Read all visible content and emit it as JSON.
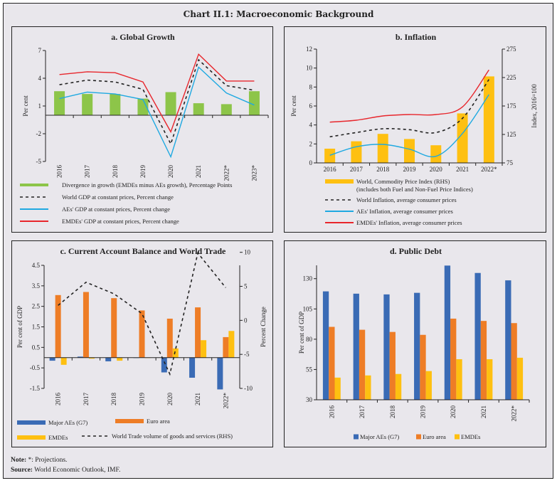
{
  "main_title": "Chart II.1: Macroeconomic Background",
  "notes": {
    "note_label": "Note:",
    "note_text": " *: Projections.",
    "source_label": "Source:",
    "source_text": " World Economic Outlook, IMF."
  },
  "colors": {
    "green": "#8dc549",
    "red": "#e8262c",
    "cyan": "#1fa9e1",
    "black": "#222222",
    "gold": "#fec011",
    "blue": "#3a6bb5",
    "orange": "#ee7d26",
    "background": "#e9e7ec"
  },
  "chart_data": [
    {
      "id": "a",
      "type": "bar+line",
      "title": "a. Global Growth",
      "ylabel": "Per cent",
      "ylim": [
        -5,
        7
      ],
      "yticks": [
        7,
        4,
        1,
        -2,
        -5
      ],
      "categories": [
        "2016",
        "2017",
        "2018",
        "2019",
        "2020",
        "2021",
        "2022*",
        "2023*"
      ],
      "bars": [
        {
          "name": "Divergence in growth (EMDEs minus AEs growth), Percentage Points",
          "color": "#8dc549",
          "values": [
            2.6,
            2.3,
            2.3,
            1.8,
            2.5,
            1.3,
            1.2,
            2.6
          ]
        }
      ],
      "lines": [
        {
          "name": "World GDP at constant prices, Percent change",
          "color": "#222222",
          "dashed": true,
          "values": [
            3.3,
            3.8,
            3.6,
            2.8,
            -3.1,
            6.0,
            3.2,
            2.7
          ]
        },
        {
          "name": "AEs' GDP at constant prices, Percent change",
          "color": "#1fa9e1",
          "dashed": false,
          "values": [
            1.8,
            2.5,
            2.3,
            1.7,
            -4.5,
            5.2,
            2.4,
            1.1
          ]
        },
        {
          "name": "EMDEs' GDP at constant prices, Percent change",
          "color": "#e8262c",
          "dashed": false,
          "values": [
            4.4,
            4.7,
            4.6,
            3.6,
            -1.8,
            6.6,
            3.7,
            3.7
          ]
        }
      ],
      "legend_order": [
        "bar:0",
        "line:0",
        "line:1",
        "line:2"
      ],
      "legend_placement": "bottom"
    },
    {
      "id": "b",
      "type": "bar+line",
      "title": "b. Inflation",
      "ylabel": "Per cent",
      "ylabel_right": "Index, 2016=100",
      "ylim": [
        0,
        12
      ],
      "yticks": [
        0,
        2,
        4,
        6,
        8,
        10,
        12
      ],
      "ylim_right": [
        75,
        275
      ],
      "yticks_right": [
        75,
        125,
        175,
        225,
        275
      ],
      "categories": [
        "2016",
        "2017",
        "2018",
        "2019",
        "2020",
        "2021",
        "2022*"
      ],
      "bars": [
        {
          "name": "World, Commodity Price Index (RHS)",
          "name2": "(includes both Fuel and Non-Fuel Price Indices)",
          "color": "#fec011",
          "axis": "right",
          "values": [
            100,
            113,
            126,
            117,
            106,
            162,
            227
          ]
        }
      ],
      "lines": [
        {
          "name": "World Inflation, average consumer prices",
          "color": "#222222",
          "dashed": true,
          "values": [
            2.75,
            3.2,
            3.6,
            3.5,
            3.2,
            4.7,
            8.8
          ]
        },
        {
          "name": "AEs' Inflation, average consumer prices",
          "color": "#1fa9e1",
          "dashed": false,
          "values": [
            0.8,
            1.7,
            1.95,
            1.45,
            0.7,
            3.1,
            7.2
          ]
        },
        {
          "name": "EMDEs' Inflation, average consumer prices",
          "color": "#e8262c",
          "dashed": false,
          "values": [
            4.3,
            4.5,
            4.95,
            5.1,
            5.1,
            5.9,
            9.8
          ]
        }
      ],
      "smooth": true,
      "legend_placement": "bottom"
    },
    {
      "id": "c",
      "type": "bar+line",
      "title": "c. Current Account Balance and World Trade",
      "ylabel": "Per cent of GDP",
      "ylabel_right": "Percent Change",
      "ylim": [
        -1.5,
        4.5
      ],
      "yticks": [
        4.5,
        3.5,
        2.5,
        1.5,
        0.5,
        -0.5,
        -1.5
      ],
      "ylim_right": [
        -10,
        13
      ],
      "yticks_right": [
        10,
        5,
        0,
        -5,
        -10
      ],
      "categories": [
        "2016",
        "2017",
        "2018",
        "2019",
        "2020",
        "2021",
        "2022*"
      ],
      "bars": [
        {
          "name": "Major AEs (G7)",
          "color": "#3a6bb5",
          "values": [
            -0.15,
            0.05,
            -0.18,
            -0.02,
            -0.72,
            -0.98,
            -1.55
          ]
        },
        {
          "name": "Euro area",
          "color": "#ee7d26",
          "values": [
            3.05,
            3.2,
            2.9,
            2.3,
            1.9,
            2.45,
            1.0
          ]
        },
        {
          "name": "EMDEs",
          "color": "#fec011",
          "values": [
            -0.35,
            -0.05,
            -0.15,
            0.0,
            0.45,
            0.85,
            1.3
          ]
        }
      ],
      "lines": [
        {
          "name": "World Trade volume of goods and services (RHS)",
          "color": "#222222",
          "dashed": true,
          "axis": "right",
          "values": [
            2.2,
            5.6,
            3.9,
            1.0,
            -7.9,
            9.9,
            4.8
          ]
        }
      ],
      "legend_placement": "bottom"
    },
    {
      "id": "d",
      "type": "bar",
      "title": "d. Public Debt",
      "ylabel": "Per cent of GDP",
      "ylim": [
        30,
        141
      ],
      "yticks": [
        30,
        55,
        80,
        105,
        130
      ],
      "categories": [
        "2016",
        "2017",
        "2018",
        "2019",
        "2020",
        "2021",
        "2022*"
      ],
      "bars": [
        {
          "name": "Major AEs (G7)",
          "color": "#3a6bb5",
          "values": [
            119.5,
            117.6,
            117.0,
            118.3,
            140.8,
            134.7,
            128.6
          ]
        },
        {
          "name": "Euro area",
          "color": "#ee7d26",
          "values": [
            90.2,
            87.8,
            86.0,
            83.6,
            97.0,
            95.1,
            93.3
          ]
        },
        {
          "name": "EMDEs",
          "color": "#fec011",
          "values": [
            48.3,
            50.1,
            51.3,
            53.7,
            63.5,
            63.5,
            64.7
          ]
        }
      ],
      "legend_placement": "bottom"
    }
  ]
}
